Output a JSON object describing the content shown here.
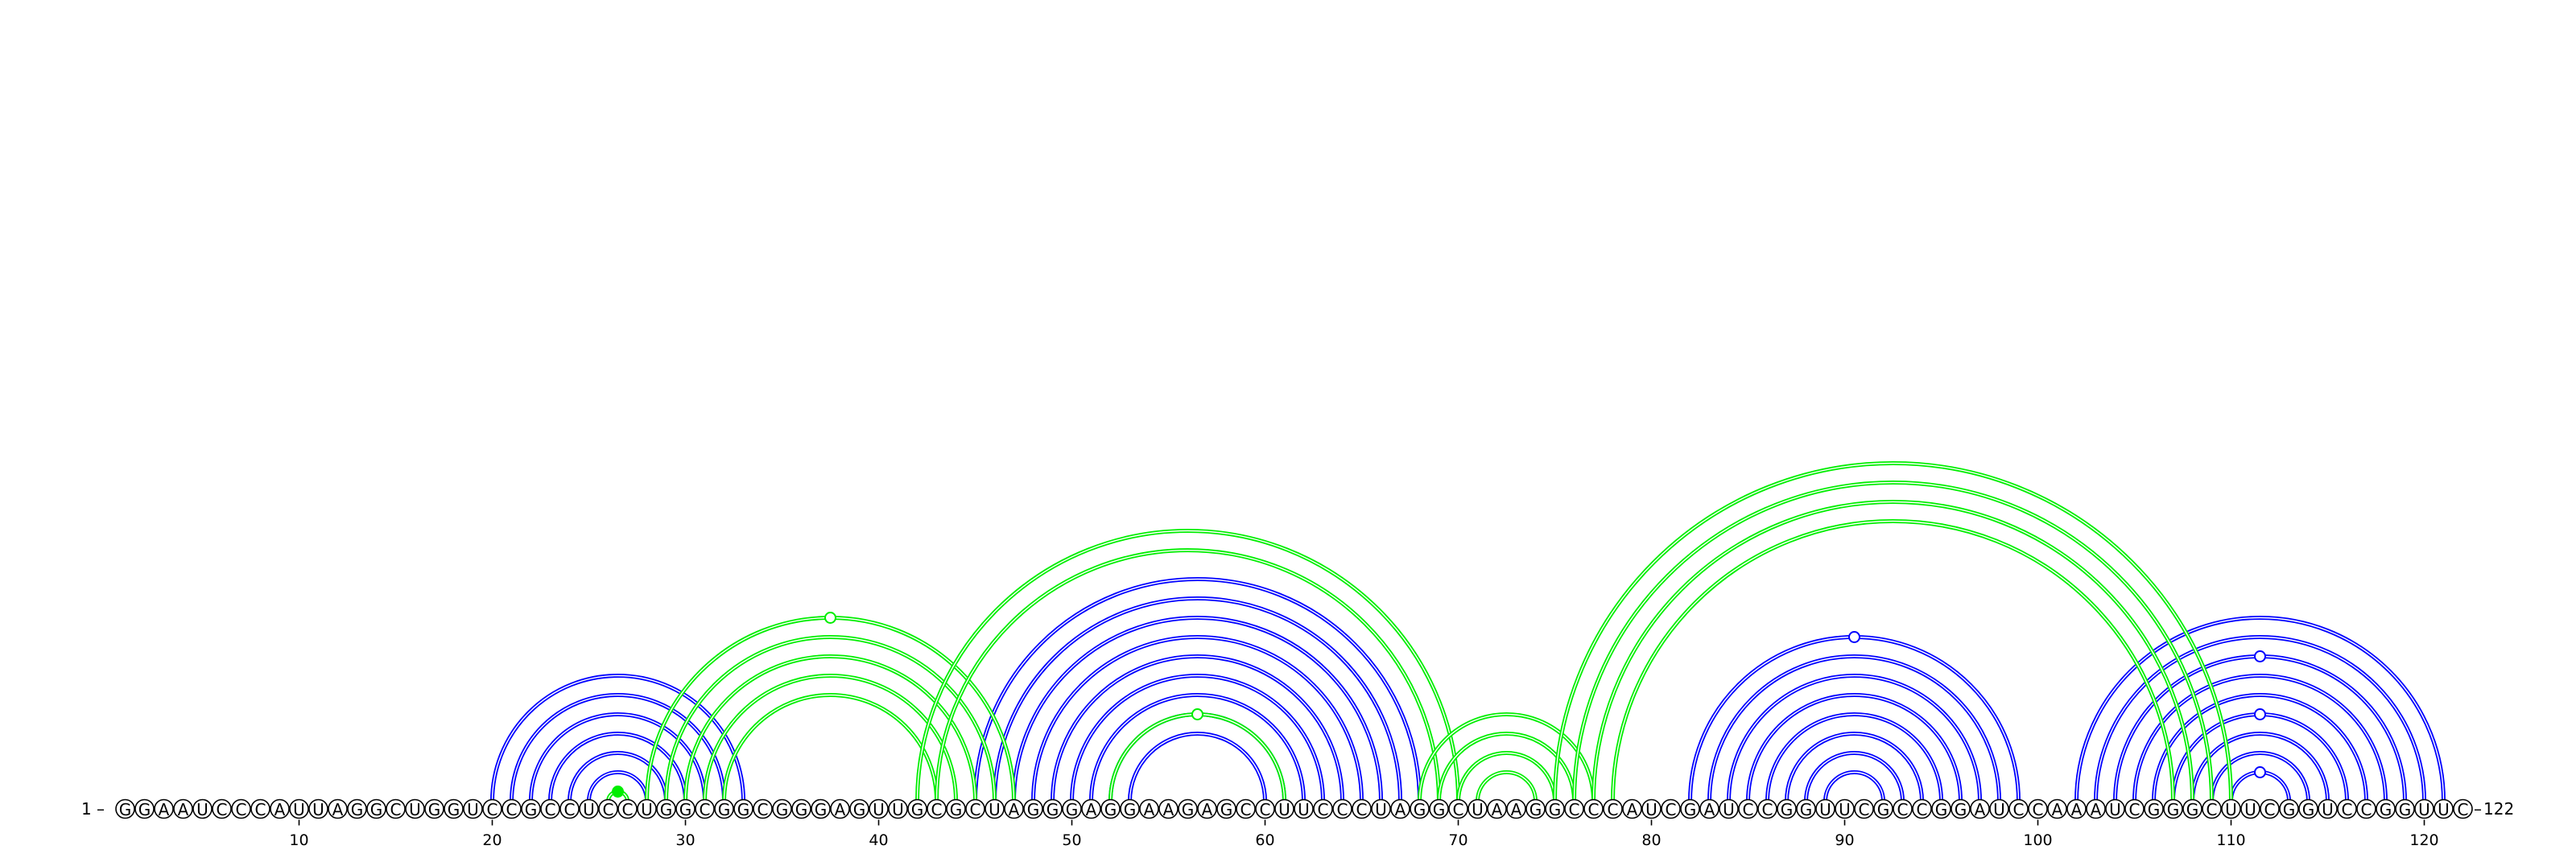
{
  "sequence": "GGAAUCCCAUUAGGCUGGUCCGCCUCCUGGCGGCGGGAGUUGCGCUAGGGAGGAAGAGCCUUCCCUAGGCUAAGGCCCAUCGAUCCGGUUCGCCGGAUCCAAAUCGGGCUUCGGUCCGGUUC",
  "start_label": "1",
  "end_label": "122",
  "ticks": [
    "10",
    "20",
    "30",
    "40",
    "50",
    "60",
    "70",
    "80",
    "90",
    "100",
    "110",
    "120"
  ],
  "colors": {
    "primary": "#0000ff",
    "alternative": "#00ee00",
    "backbone": "#000000"
  },
  "structures": [
    {
      "color": "#0000ff",
      "pairs": [
        [
          20,
          33
        ],
        [
          21,
          32
        ],
        [
          22,
          31
        ],
        [
          23,
          30
        ],
        [
          24,
          29
        ],
        [
          25,
          28
        ],
        [
          45,
          68
        ],
        [
          46,
          67
        ],
        [
          47,
          66
        ],
        [
          48,
          65
        ],
        [
          49,
          64
        ],
        [
          50,
          63
        ],
        [
          51,
          62
        ],
        [
          52,
          61
        ],
        [
          53,
          60
        ],
        [
          82,
          99
        ],
        [
          83,
          98
        ],
        [
          84,
          97
        ],
        [
          85,
          96
        ],
        [
          86,
          95
        ],
        [
          87,
          94
        ],
        [
          88,
          93
        ],
        [
          89,
          92
        ],
        [
          102,
          121
        ],
        [
          103,
          120
        ],
        [
          104,
          119
        ],
        [
          105,
          118
        ],
        [
          106,
          117
        ],
        [
          107,
          116
        ],
        [
          108,
          115
        ],
        [
          109,
          114
        ],
        [
          110,
          113
        ]
      ],
      "loop_markers": [
        90.5,
        111.5,
        111.5,
        111.5
      ]
    },
    {
      "color": "#00ee00",
      "pairs": [
        [
          26,
          27
        ],
        [
          28,
          47
        ],
        [
          29,
          46
        ],
        [
          30,
          45
        ],
        [
          31,
          44
        ],
        [
          32,
          43
        ],
        [
          42,
          70
        ],
        [
          43,
          69
        ],
        [
          52,
          61
        ],
        [
          68,
          77
        ],
        [
          69,
          76
        ],
        [
          70,
          75
        ],
        [
          71,
          74
        ],
        [
          75,
          110
        ],
        [
          76,
          109
        ],
        [
          77,
          108
        ],
        [
          78,
          107
        ]
      ],
      "loop_markers": [
        37.5,
        56.5,
        26.5
      ]
    }
  ]
}
